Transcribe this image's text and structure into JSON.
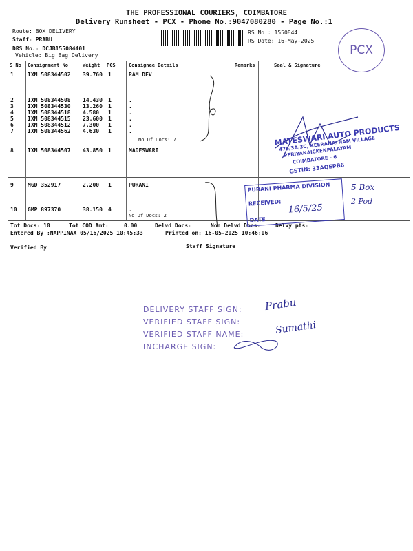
{
  "header": {
    "company": "THE PROFESSIONAL COURIERS, COIMBATORE",
    "subtitle": "Delivery Runsheet - PCX - Phone No.:9047080280 - Page No.:1",
    "route": "Route: BOX DELIVERY",
    "staff": "Staff: PRABU",
    "drs": "DRS No.: DCJB155084401",
    "vehicle": "Vehicle: Big Bag Delivery",
    "rs_no": "RS No.: 1550844",
    "rs_date": "RS Date: 16-May-2025",
    "stamp": "PCX"
  },
  "table": {
    "columns": [
      "S No",
      "Consignment No",
      "Weight",
      "PCS",
      "Consignee Details",
      "Remarks",
      "Seal & Signature"
    ],
    "rows": [
      {
        "sno": "1",
        "cn": "IXM 508344502",
        "wt": "39.760",
        "pcs": "1",
        "details": "RAM DEV"
      },
      {
        "sno": "2",
        "cn": "IXM 508344508",
        "wt": "14.430",
        "pcs": "1",
        "details": "."
      },
      {
        "sno": "3",
        "cn": "IXM 508344530",
        "wt": "13.260",
        "pcs": "1",
        "details": "."
      },
      {
        "sno": "4",
        "cn": "IXM 508344518",
        "wt": "4.580",
        "pcs": "1",
        "details": "."
      },
      {
        "sno": "5",
        "cn": "IXM 508344515",
        "wt": "23.600",
        "pcs": "1",
        "details": "."
      },
      {
        "sno": "6",
        "cn": "IXM 508344512",
        "wt": "7.300",
        "pcs": "1",
        "details": "."
      },
      {
        "sno": "7",
        "cn": "IXM 508344562",
        "wt": "4.630",
        "pcs": "1",
        "details": "."
      },
      {
        "sno": "8",
        "cn": "IXM 508344507",
        "wt": "43.850",
        "pcs": "1",
        "details": "MADESWARI"
      },
      {
        "sno": "9",
        "cn": "MGD 352917",
        "wt": "2.200",
        "pcs": "1",
        "details": "PURANI"
      },
      {
        "sno": "10",
        "cn": "GMP 897370",
        "wt": "38.150",
        "pcs": "4",
        "details": "."
      }
    ],
    "docs_group1": "No.Of Docs: 7",
    "docs_group2": "No.Of Docs: 2"
  },
  "footer": {
    "tot_docs": "Tot Docs:  10",
    "tot_cod": "Tot COD Amt:",
    "cod_value": "0.00",
    "delvd": "Delvd Docs:",
    "non_delvd": "Non Delvd Docs:",
    "delvy_pts": "Delvy pts:",
    "entered": "Entered By :NAPPINAX 05/16/2025 10:45:33",
    "printed": "Printed on: 16-05-2025 10:46:06",
    "verified": "Verified By",
    "staff_sig": "Staff Signature"
  },
  "stamps": {
    "auto1": "MATESWARI AUTO PRODUCTS",
    "auto2": "476/3A,3C, KEERANATHAM VILLAGE",
    "auto3": "PERIYANAICKENPALAYAM",
    "auto4": "COIMBATORE - 6",
    "auto5": "GSTIN: 33AQEPB6",
    "pharma": "PURANI PHARMA DIVISION",
    "received": "RECEIVED:",
    "date": "DATE",
    "date_hand": "16/5/25",
    "note1": "5 Box",
    "note2": "2 Pod"
  },
  "signoff": {
    "l1": "DELIVERY STAFF SIGN:",
    "l2": "VERIFIED STAFF SIGN:",
    "l3": "VERIFIED STAFF NAME:",
    "l4": "INCHARGE SIGN:",
    "name1": "Prabu",
    "name2": "Sumathi"
  },
  "colors": {
    "stamp": "#3a3ab0",
    "signoff": "#6a5ab0"
  }
}
